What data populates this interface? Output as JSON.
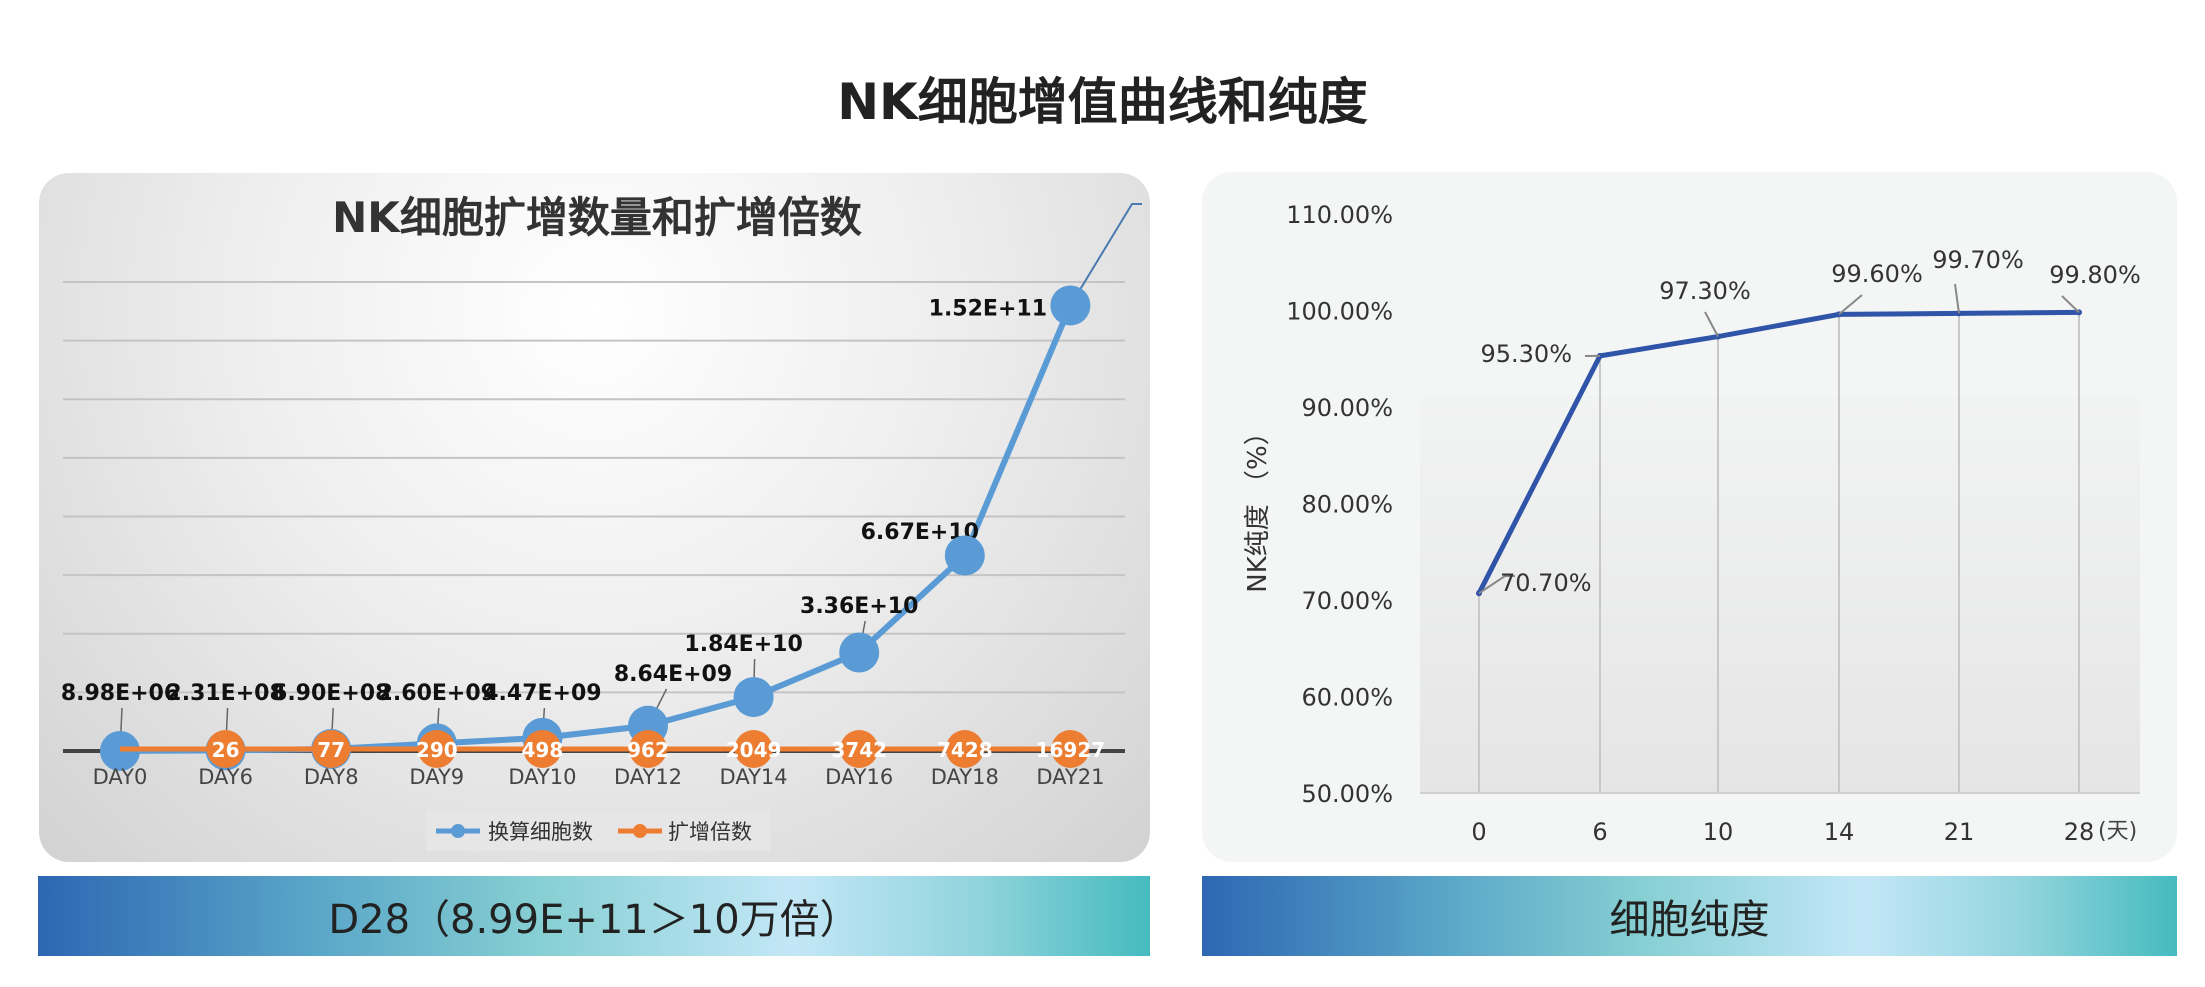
{
  "page_title": "NK细胞增值曲线和纯度",
  "banners": {
    "left": "D28（8.99E+11＞10万倍）",
    "right": "细胞纯度"
  },
  "chart_data": [
    {
      "type": "line",
      "title": "NK细胞扩增数量和扩增倍数",
      "categories": [
        "DAY0",
        "DAY6",
        "DAY8",
        "DAY9",
        "DAY10",
        "DAY12",
        "DAY14",
        "DAY16",
        "DAY18",
        "DAY21"
      ],
      "ylim": [
        0,
        160000000000
      ],
      "grid": true,
      "legend_placement": "bottom",
      "series": [
        {
          "name": "换算细胞数",
          "color": "#5b9bd5",
          "values": [
            8980000,
            231000000,
            690000000,
            2600000000,
            4470000000,
            8640000000,
            18400000000,
            33600000000,
            66700000000,
            152000000000
          ],
          "labels": [
            "8.98E+06",
            "2.31E+08",
            "6.90E+08",
            "2.60E+09",
            "4.47E+09",
            "8.64E+09",
            "1.84E+10",
            "3.36E+10",
            "6.67E+10",
            "1.52E+11"
          ]
        },
        {
          "name": "扩增倍数",
          "color": "#ed7d31",
          "values": [
            1,
            26,
            77,
            290,
            498,
            962,
            2049,
            3742,
            7428,
            16927
          ],
          "labels": [
            "",
            "26",
            "77",
            "290",
            "498",
            "962",
            "2049",
            "3742",
            "7428",
            "16927"
          ]
        }
      ]
    },
    {
      "type": "line",
      "categories": [
        "0",
        "6",
        "10",
        "14",
        "21",
        "28"
      ],
      "x_unit": "(天)",
      "ylabel": "NK纯度 （%）",
      "ylim": [
        50,
        110
      ],
      "yticks": [
        "50.00%",
        "60.00%",
        "70.00%",
        "80.00%",
        "90.00%",
        "100.00%",
        "110.00%"
      ],
      "series": [
        {
          "color": "#2f54a8",
          "values": [
            70.7,
            95.3,
            97.3,
            99.6,
            99.7,
            99.8
          ],
          "labels": [
            "70.70%",
            "95.30%",
            "97.30%",
            "99.60%",
            "99.70%",
            "99.80%"
          ]
        }
      ]
    }
  ]
}
